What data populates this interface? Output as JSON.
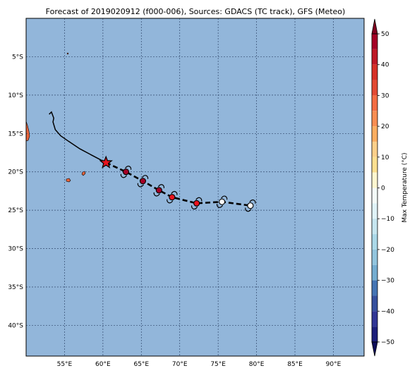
{
  "title": "Forecast of 2019020912 (f000-006), Sources: GDACS (TC track), GFS (Meteo)",
  "map": {
    "lon_range": [
      50,
      94
    ],
    "lat_range": [
      -44,
      0
    ],
    "ocean_color": "#92b6da",
    "land_color": "#e8643c",
    "grid": true,
    "lon_ticks": [
      {
        "value": 55,
        "label": "55°E"
      },
      {
        "value": 60,
        "label": "60°E"
      },
      {
        "value": 65,
        "label": "65°E"
      },
      {
        "value": 70,
        "label": "70°E"
      },
      {
        "value": 75,
        "label": "75°E"
      },
      {
        "value": 80,
        "label": "80°E"
      },
      {
        "value": 85,
        "label": "85°E"
      },
      {
        "value": 90,
        "label": "90°E"
      }
    ],
    "lat_ticks": [
      {
        "value": -5,
        "label": "5°S"
      },
      {
        "value": -10,
        "label": "10°S"
      },
      {
        "value": -15,
        "label": "15°S"
      },
      {
        "value": -20,
        "label": "20°S"
      },
      {
        "value": -25,
        "label": "25°S"
      },
      {
        "value": -30,
        "label": "30°S"
      },
      {
        "value": -35,
        "label": "35°S"
      },
      {
        "value": -40,
        "label": "40°S"
      }
    ]
  },
  "track": {
    "past": [
      [
        53.0,
        -12.5
      ],
      [
        53.3,
        -12.2
      ],
      [
        53.6,
        -13.0
      ],
      [
        53.5,
        -13.5
      ],
      [
        53.8,
        -14.5
      ],
      [
        54.5,
        -15.3
      ],
      [
        55.5,
        -16.0
      ],
      [
        57.0,
        -17.0
      ],
      [
        58.5,
        -17.8
      ],
      [
        60.4,
        -18.8
      ]
    ],
    "current": {
      "lon": 60.4,
      "lat": -18.8,
      "marker": "star",
      "color": "#e8141e"
    },
    "forecast": [
      [
        60.4,
        -18.8
      ],
      [
        63.0,
        -20.0
      ],
      [
        65.2,
        -21.2
      ],
      [
        67.3,
        -22.4
      ],
      [
        69.0,
        -23.3
      ],
      [
        72.2,
        -24.1
      ],
      [
        75.5,
        -23.9
      ],
      [
        79.2,
        -24.4
      ]
    ],
    "symbols": [
      {
        "lon": 63.0,
        "lat": -20.0,
        "color": "#a50026"
      },
      {
        "lon": 65.2,
        "lat": -21.2,
        "color": "#a50026"
      },
      {
        "lon": 67.3,
        "lat": -22.4,
        "color": "#a50026"
      },
      {
        "lon": 69.0,
        "lat": -23.3,
        "color": "#e8141e"
      },
      {
        "lon": 72.2,
        "lat": -24.1,
        "color": "#e8141e"
      },
      {
        "lon": 75.5,
        "lat": -23.9,
        "color": "#ffffff"
      },
      {
        "lon": 79.2,
        "lat": -24.4,
        "color": "#ffffff"
      }
    ]
  },
  "colorbar": {
    "label": "Max Temperature (°C)",
    "min": -50,
    "max": 50,
    "ticks": [
      {
        "value": 50,
        "label": "50"
      },
      {
        "value": 40,
        "label": "40"
      },
      {
        "value": 30,
        "label": "30"
      },
      {
        "value": 20,
        "label": "20"
      },
      {
        "value": 10,
        "label": "10"
      },
      {
        "value": 0,
        "label": "0"
      },
      {
        "value": -10,
        "label": "−10"
      },
      {
        "value": -20,
        "label": "−20"
      },
      {
        "value": -30,
        "label": "−30"
      },
      {
        "value": -40,
        "label": "−40"
      },
      {
        "value": -50,
        "label": "−50"
      }
    ],
    "bands": [
      {
        "from": 45,
        "to": 50,
        "color": "#a50026"
      },
      {
        "from": 40,
        "to": 45,
        "color": "#be1826"
      },
      {
        "from": 35,
        "to": 40,
        "color": "#d73027"
      },
      {
        "from": 30,
        "to": 35,
        "color": "#e34a33"
      },
      {
        "from": 25,
        "to": 30,
        "color": "#f46d43"
      },
      {
        "from": 20,
        "to": 25,
        "color": "#f98e52"
      },
      {
        "from": 15,
        "to": 20,
        "color": "#fdae61"
      },
      {
        "from": 10,
        "to": 15,
        "color": "#fdd08a"
      },
      {
        "from": 5,
        "to": 10,
        "color": "#fee090"
      },
      {
        "from": 0,
        "to": 5,
        "color": "#fff7d0"
      },
      {
        "from": -5,
        "to": 0,
        "color": "#f4fbf8"
      },
      {
        "from": -10,
        "to": -5,
        "color": "#e0f3f8"
      },
      {
        "from": -15,
        "to": -10,
        "color": "#c6e6f0"
      },
      {
        "from": -20,
        "to": -15,
        "color": "#abd9e9"
      },
      {
        "from": -25,
        "to": -20,
        "color": "#92c5de"
      },
      {
        "from": -30,
        "to": -25,
        "color": "#74add1"
      },
      {
        "from": -35,
        "to": -30,
        "color": "#4575b4"
      },
      {
        "from": -40,
        "to": -35,
        "color": "#36509e"
      },
      {
        "from": -45,
        "to": -40,
        "color": "#313695"
      },
      {
        "from": -50,
        "to": -45,
        "color": "#1c1e7a"
      }
    ],
    "over_color": "#800020",
    "under_color": "#0d0d5a"
  }
}
